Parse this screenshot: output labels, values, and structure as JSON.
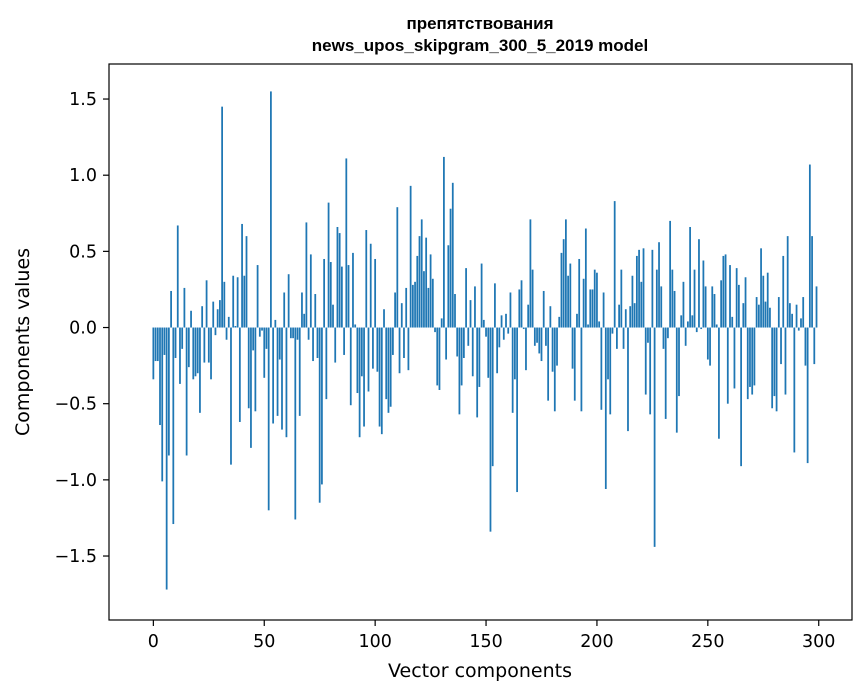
{
  "chart_data": {
    "type": "bar",
    "title_line1": "препятствования",
    "title_line2": "news_upos_skipgram_300_5_2019 model",
    "xlabel": "Vector components",
    "ylabel": "Components values",
    "xlim": [
      -20,
      315
    ],
    "ylim": [
      -1.92,
      1.73
    ],
    "xticks": [
      0,
      50,
      100,
      150,
      200,
      250,
      300
    ],
    "xtick_labels": [
      "0",
      "50",
      "100",
      "150",
      "200",
      "250",
      "300"
    ],
    "yticks": [
      -1.5,
      -1.0,
      -0.5,
      0.0,
      0.5,
      1.0,
      1.5
    ],
    "ytick_labels": [
      "−1.5",
      "−1.0",
      "−0.5",
      "0.0",
      "0.5",
      "1.0",
      "1.5"
    ],
    "bar_color": "#1f77b4",
    "x": [
      0,
      1,
      2,
      3,
      4,
      5,
      6,
      7,
      8,
      9,
      10,
      11,
      12,
      13,
      14,
      15,
      16,
      17,
      18,
      19,
      20,
      21,
      22,
      23,
      24,
      25,
      26,
      27,
      28,
      29,
      30,
      31,
      32,
      33,
      34,
      35,
      36,
      37,
      38,
      39,
      40,
      41,
      42,
      43,
      44,
      45,
      46,
      47,
      48,
      49,
      50,
      51,
      52,
      53,
      54,
      55,
      56,
      57,
      58,
      59,
      60,
      61,
      62,
      63,
      64,
      65,
      66,
      67,
      68,
      69,
      70,
      71,
      72,
      73,
      74,
      75,
      76,
      77,
      78,
      79,
      80,
      81,
      82,
      83,
      84,
      85,
      86,
      87,
      88,
      89,
      90,
      91,
      92,
      93,
      94,
      95,
      96,
      97,
      98,
      99,
      100,
      101,
      102,
      103,
      104,
      105,
      106,
      107,
      108,
      109,
      110,
      111,
      112,
      113,
      114,
      115,
      116,
      117,
      118,
      119,
      120,
      121,
      122,
      123,
      124,
      125,
      126,
      127,
      128,
      129,
      130,
      131,
      132,
      133,
      134,
      135,
      136,
      137,
      138,
      139,
      140,
      141,
      142,
      143,
      144,
      145,
      146,
      147,
      148,
      149,
      150,
      151,
      152,
      153,
      154,
      155,
      156,
      157,
      158,
      159,
      160,
      161,
      162,
      163,
      164,
      165,
      166,
      167,
      168,
      169,
      170,
      171,
      172,
      173,
      174,
      175,
      176,
      177,
      178,
      179,
      180,
      181,
      182,
      183,
      184,
      185,
      186,
      187,
      188,
      189,
      190,
      191,
      192,
      193,
      194,
      195,
      196,
      197,
      198,
      199,
      200,
      201,
      202,
      203,
      204,
      205,
      206,
      207,
      208,
      209,
      210,
      211,
      212,
      213,
      214,
      215,
      216,
      217,
      218,
      219,
      220,
      221,
      222,
      223,
      224,
      225,
      226,
      227,
      228,
      229,
      230,
      231,
      232,
      233,
      234,
      235,
      236,
      237,
      238,
      239,
      240,
      241,
      242,
      243,
      244,
      245,
      246,
      247,
      248,
      249,
      250,
      251,
      252,
      253,
      254,
      255,
      256,
      257,
      258,
      259,
      260,
      261,
      262,
      263,
      264,
      265,
      266,
      267,
      268,
      269,
      270,
      271,
      272,
      273,
      274,
      275,
      276,
      277,
      278,
      279,
      280,
      281,
      282,
      283,
      284,
      285,
      286,
      287,
      288,
      289,
      290,
      291,
      292,
      293,
      294,
      295,
      296,
      297,
      298,
      299
    ],
    "values": [
      -0.34,
      -0.22,
      -0.22,
      -0.64,
      -1.01,
      -0.18,
      -1.72,
      -0.84,
      0.24,
      -1.29,
      -0.2,
      0.67,
      -0.37,
      -0.14,
      0.26,
      -0.84,
      -0.26,
      0.11,
      -0.34,
      -0.32,
      -0.3,
      -0.56,
      0.14,
      -0.23,
      0.31,
      -0.23,
      -0.34,
      0.17,
      -0.05,
      0.12,
      0.18,
      1.45,
      0.3,
      -0.08,
      0.07,
      -0.9,
      0.34,
      0.01,
      0.33,
      -0.62,
      0.68,
      0.34,
      0.6,
      -0.53,
      -0.79,
      -0.15,
      -0.55,
      0.41,
      -0.06,
      -0.02,
      -0.33,
      -0.14,
      -1.2,
      1.55,
      -0.63,
      0.05,
      -0.58,
      -0.21,
      -0.67,
      0.23,
      -0.72,
      0.35,
      -0.07,
      -0.07,
      -1.26,
      -0.08,
      -0.58,
      0.23,
      0.09,
      0.69,
      -0.08,
      0.48,
      -0.22,
      0.22,
      -0.2,
      -1.15,
      -1.03,
      0.45,
      -0.47,
      0.82,
      0.43,
      0.15,
      -0.23,
      0.66,
      0.62,
      0.4,
      -0.18,
      1.11,
      0.41,
      -0.51,
      0.49,
      0.02,
      -0.43,
      -0.72,
      -0.32,
      -0.65,
      0.64,
      -0.42,
      0.55,
      -0.27,
      0.45,
      -0.29,
      -0.65,
      -0.7,
      0.12,
      -0.47,
      -0.56,
      -0.52,
      -0.18,
      0.23,
      0.79,
      -0.3,
      0.16,
      -0.2,
      0.26,
      -0.28,
      0.93,
      0.28,
      0.3,
      0.47,
      0.6,
      0.71,
      0.37,
      0.59,
      0.26,
      0.48,
      0.32,
      -0.03,
      -0.38,
      -0.41,
      0.06,
      1.12,
      -0.21,
      0.54,
      0.78,
      0.95,
      0.22,
      -0.19,
      -0.57,
      -0.38,
      -0.2,
      0.39,
      -0.12,
      0.18,
      -0.32,
      0.27,
      -0.59,
      -0.39,
      0.42,
      0.05,
      -0.06,
      -0.33,
      -1.34,
      -0.91,
      0.29,
      -0.3,
      -0.13,
      0.08,
      -0.08,
      0.09,
      -0.04,
      0.23,
      -0.56,
      -0.34,
      -1.08,
      0.25,
      0.31,
      -0.01,
      -0.28,
      0.15,
      0.71,
      0.38,
      -0.12,
      -0.1,
      -0.17,
      -0.22,
      0.24,
      -0.12,
      -0.48,
      0.14,
      -0.29,
      -0.55,
      -0.25,
      0.07,
      0.49,
      0.58,
      0.71,
      0.34,
      0.42,
      -0.27,
      -0.48,
      0.09,
      0.45,
      -0.55,
      0.32,
      0.65,
      0.02,
      0.25,
      0.25,
      0.38,
      0.36,
      0.04,
      -0.54,
      0.23,
      -1.06,
      -0.34,
      -0.57,
      -0.04,
      0.83,
      -0.14,
      0.15,
      0.38,
      -0.14,
      0.12,
      -0.68,
      0.14,
      0.34,
      0.16,
      0.47,
      0.51,
      0.3,
      0.52,
      -0.44,
      -0.1,
      -0.57,
      0.51,
      -1.44,
      0.38,
      0.56,
      0.27,
      -0.14,
      -0.6,
      -0.07,
      0.7,
      0.38,
      0.24,
      -0.69,
      -0.45,
      0.08,
      0.3,
      -0.12,
      0.04,
      0.66,
      0.08,
      0.38,
      -0.03,
      0.58,
      -0.01,
      0.44,
      0.27,
      -0.21,
      -0.25,
      0.27,
      0.22,
      0.02,
      -0.73,
      0.31,
      0.47,
      0.48,
      -0.5,
      0.41,
      0.07,
      -0.4,
      0.39,
      0.28,
      -0.91,
      0.16,
      0.33,
      -0.47,
      -0.39,
      -0.44,
      -0.38,
      0.2,
      0.15,
      0.52,
      0.34,
      0.17,
      0.36,
      0.13,
      -0.53,
      -0.45,
      -0.55,
      0.2,
      -0.24,
      0.47,
      -0.44,
      0.6,
      0.16,
      0.09,
      -0.82,
      0.15,
      -0.02,
      0.06,
      0.2,
      -0.25,
      -0.89,
      1.07,
      0.6,
      -0.24,
      0.27
    ]
  }
}
